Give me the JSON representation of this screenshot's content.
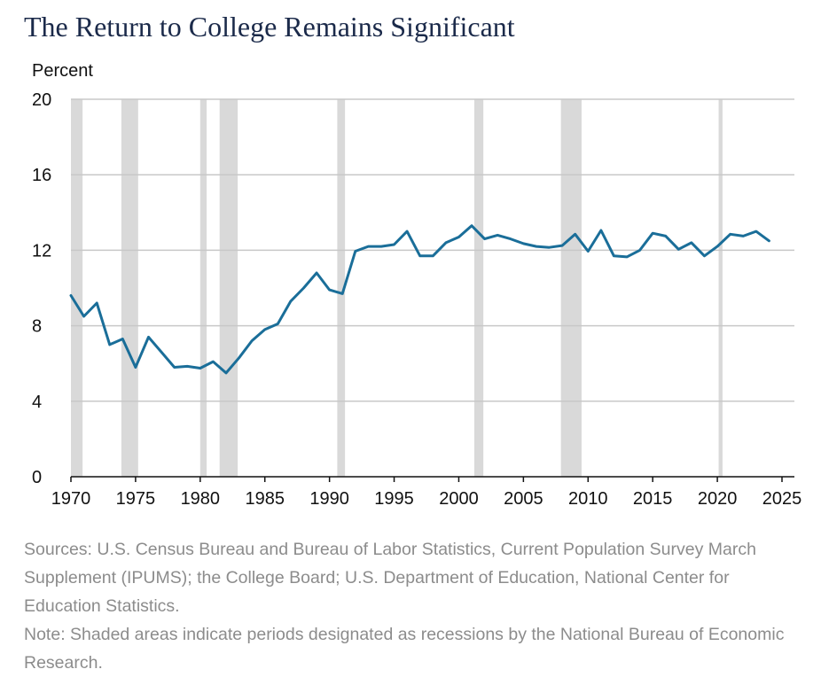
{
  "title": "The Return to College Remains Significant",
  "chart_data": {
    "type": "line",
    "title": "The Return to College Remains Significant",
    "ylabel": "Percent",
    "xlabel": "",
    "xlim": [
      1970,
      2025
    ],
    "ylim": [
      0,
      20
    ],
    "x_ticks": [
      1970,
      1975,
      1980,
      1985,
      1990,
      1995,
      2000,
      2005,
      2010,
      2015,
      2020,
      2025
    ],
    "y_ticks": [
      0,
      4,
      8,
      12,
      16,
      20
    ],
    "grid": "horizontal",
    "line_color": "#1a6e99",
    "recession_color": "#d9d9d9",
    "recessions": [
      [
        1970.0,
        1970.9
      ],
      [
        1973.9,
        1975.2
      ],
      [
        1980.0,
        1980.5
      ],
      [
        1981.5,
        1982.9
      ],
      [
        1990.6,
        1991.2
      ],
      [
        2001.2,
        2001.9
      ],
      [
        2007.9,
        2009.5
      ],
      [
        2020.1,
        2020.4
      ]
    ],
    "series": [
      {
        "x": [
          1970,
          1971,
          1972,
          1973,
          1974,
          1975,
          1976,
          1977,
          1978,
          1979,
          1980,
          1981,
          1982,
          1983,
          1984,
          1985,
          1986,
          1987,
          1988,
          1989,
          1990,
          1991,
          1992,
          1993,
          1994,
          1995,
          1996,
          1997,
          1998,
          1999,
          2000,
          2001,
          2002,
          2003,
          2004,
          2005,
          2006,
          2007,
          2008,
          2009,
          2010,
          2011,
          2012,
          2013,
          2014,
          2015,
          2016,
          2017,
          2018,
          2019,
          2020,
          2021,
          2022,
          2023,
          2024
        ],
        "values": [
          9.6,
          8.5,
          9.2,
          7.0,
          7.3,
          5.8,
          7.4,
          6.6,
          5.8,
          5.85,
          5.75,
          6.1,
          5.5,
          6.3,
          7.2,
          7.8,
          8.1,
          9.3,
          10.0,
          10.8,
          9.9,
          9.7,
          11.95,
          12.2,
          12.2,
          12.3,
          13.0,
          11.7,
          11.7,
          12.4,
          12.7,
          13.3,
          12.6,
          12.8,
          12.6,
          12.35,
          12.2,
          12.15,
          12.25,
          12.85,
          11.95,
          13.05,
          11.7,
          11.65,
          12.0,
          12.9,
          12.75,
          12.05,
          12.4,
          11.7,
          12.2,
          12.85,
          12.75,
          13.0,
          12.5
        ]
      }
    ]
  },
  "notes": {
    "sources": "Sources: U.S. Census Bureau and Bureau of Labor Statistics, Current Population Survey March Supplement (IPUMS); the College Board; U.S. Department of Education, National Center for Education Statistics.",
    "note": "Note: Shaded areas indicate periods designated as recessions by the National Bureau of Economic Research."
  }
}
